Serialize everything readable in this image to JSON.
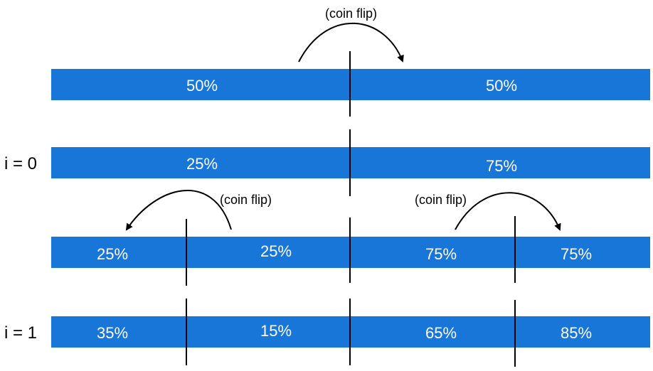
{
  "labels": {
    "coin_flip": "(coin flip)",
    "row_i0": "i = 0",
    "row_i1": "i = 1"
  },
  "rows": [
    {
      "cells": [
        "50%",
        "50%"
      ]
    },
    {
      "cells": [
        "25%",
        "75%"
      ]
    },
    {
      "cells": [
        "25%",
        "25%",
        "75%",
        "75%"
      ]
    },
    {
      "cells": [
        "35%",
        "15%",
        "65%",
        "85%"
      ]
    }
  ],
  "colors": {
    "bar": "#1976d9",
    "bar_text": "#ffffff",
    "lines": "#000000"
  }
}
